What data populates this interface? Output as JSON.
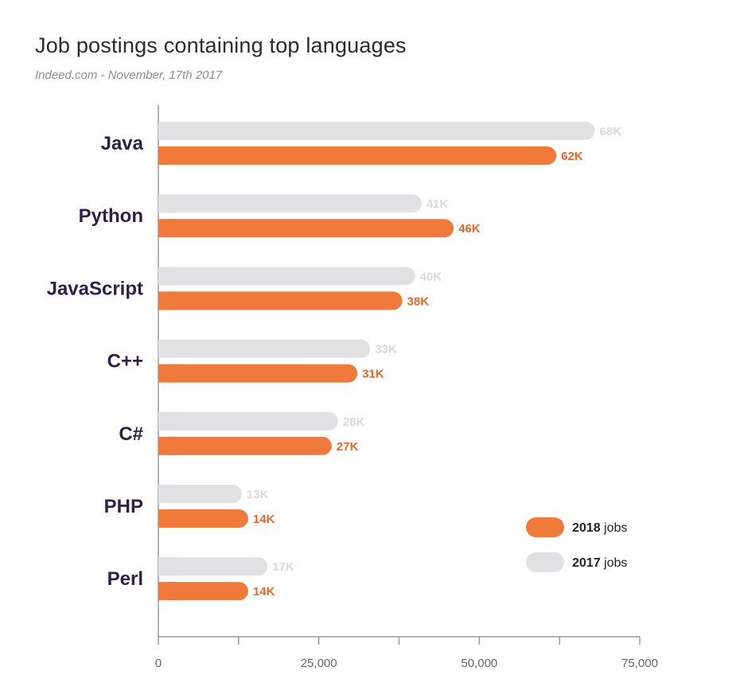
{
  "chart_data": {
    "type": "bar",
    "orientation": "horizontal",
    "title": "Job postings containing top languages",
    "subtitle": "Indeed.com - November, 17th 2017",
    "categories": [
      "Java",
      "Python",
      "JavaScript",
      "C++",
      "C#",
      "PHP",
      "Perl"
    ],
    "series": [
      {
        "name": "2017",
        "legend_bold": "2017",
        "legend_suffix": "jobs",
        "color": "#e1e1e3",
        "label_color": "#d9d9dc",
        "values": [
          68000,
          41000,
          40000,
          33000,
          28000,
          13000,
          17000
        ],
        "labels": [
          "68K",
          "41K",
          "40K",
          "33K",
          "28K",
          "13K",
          "17K"
        ]
      },
      {
        "name": "2018",
        "legend_bold": "2018",
        "legend_suffix": "jobs",
        "color": "#f07a3c",
        "label_color": "#e9682b",
        "values": [
          62000,
          46000,
          38000,
          31000,
          27000,
          14000,
          14000
        ],
        "labels": [
          "62K",
          "46K",
          "38K",
          "31K",
          "27K",
          "14K",
          "14K"
        ]
      }
    ],
    "xlim": [
      0,
      75000
    ],
    "xticks": [
      0,
      25000,
      50000,
      75000
    ],
    "xtick_labels": [
      "0",
      "25,000",
      "50,000",
      "75,000"
    ],
    "minor_xticks": [
      12500,
      37500,
      62500
    ],
    "grid": false,
    "legend_position": "bottom-right"
  }
}
